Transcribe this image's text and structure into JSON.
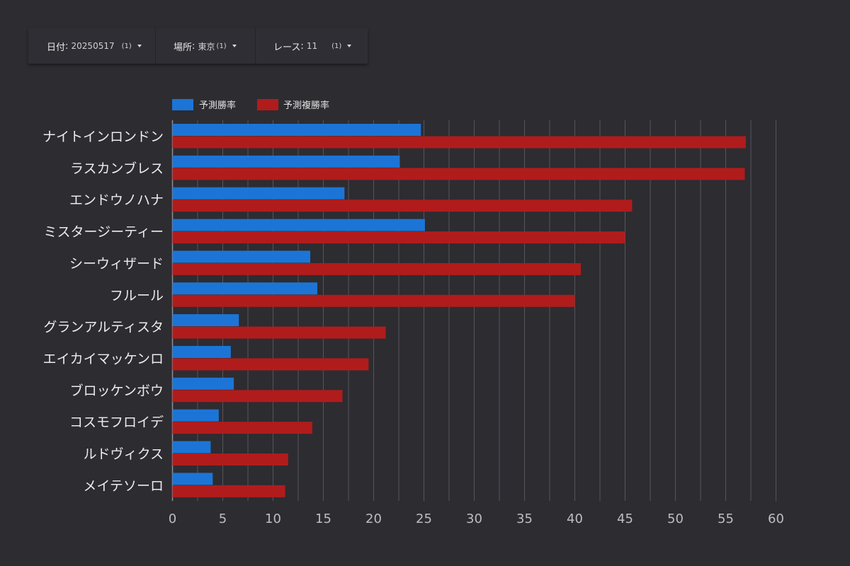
{
  "filters": [
    {
      "label": "日付",
      "value": "20250517",
      "count": "(1)"
    },
    {
      "label": "場所",
      "value": "東京",
      "count": "(1)"
    },
    {
      "label": "レース",
      "value": "11",
      "count": "(1)"
    }
  ],
  "colors": {
    "series1": "#1c75d6",
    "series2": "#b01c1c",
    "grid": "#55555b",
    "axis": "#8e8e93"
  },
  "chart_data": {
    "type": "bar",
    "orientation": "horizontal",
    "categories": [
      "ナイトインロンドン",
      "ラスカンブレス",
      "エンドウノハナ",
      "ミスタージーティー",
      "シーウィザード",
      "フルール",
      "グランアルティスタ",
      "エイカイマッケンロ",
      "ブロッケンボウ",
      "コスモフロイデ",
      "ルドヴィクス",
      "メイテソーロ"
    ],
    "series": [
      {
        "name": "予測勝率",
        "values": [
          24.7,
          22.6,
          17.1,
          25.1,
          13.7,
          14.4,
          6.6,
          5.8,
          6.1,
          4.6,
          3.8,
          4.0
        ]
      },
      {
        "name": "予測複勝率",
        "values": [
          57.0,
          56.9,
          45.7,
          45.0,
          40.6,
          40.0,
          21.2,
          19.5,
          16.9,
          13.9,
          11.5,
          11.2
        ]
      }
    ],
    "xlim": [
      0,
      60
    ],
    "xticks": [
      0,
      5,
      10,
      15,
      20,
      25,
      30,
      35,
      40,
      45,
      50,
      55,
      60
    ],
    "grid": true,
    "legend": "top-left"
  }
}
